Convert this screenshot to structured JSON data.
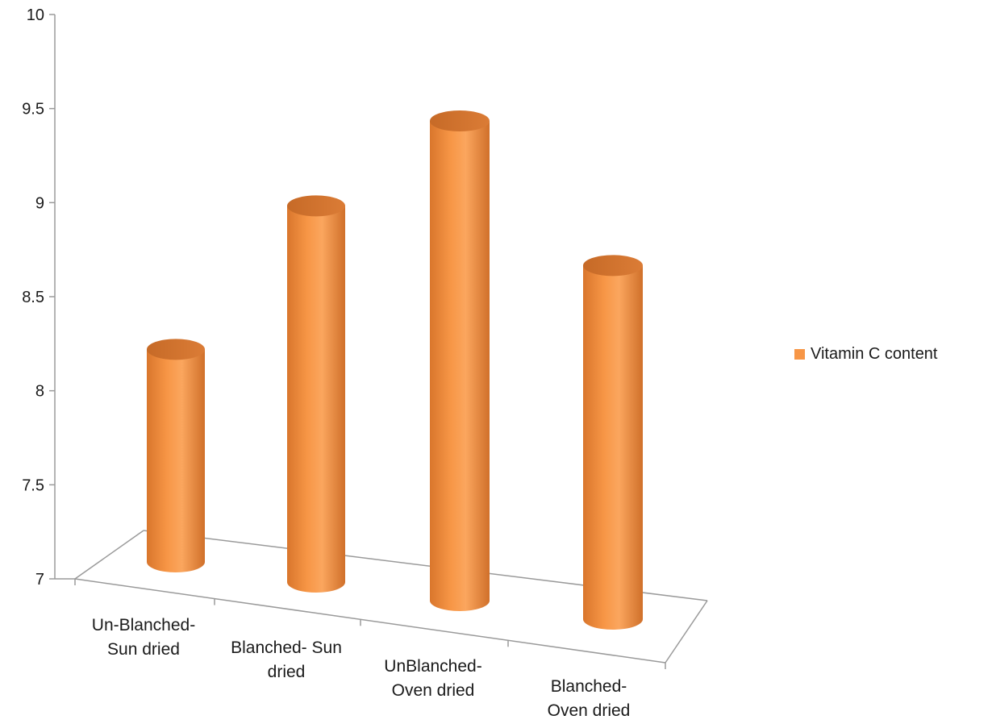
{
  "chart_data": {
    "type": "bar",
    "style": "3d-cylinder",
    "categories": [
      [
        "Un-Blanched-",
        "Sun dried"
      ],
      [
        "Blanched- Sun",
        "dried"
      ],
      [
        "UnBlanched-",
        "Oven dried"
      ],
      [
        "Blanched-",
        "Oven dried"
      ]
    ],
    "series": [
      {
        "name": "Vitamin C content",
        "values": [
          8.13,
          9.0,
          9.55,
          8.88
        ],
        "color": "#F79646"
      }
    ],
    "ylim": [
      7,
      10
    ],
    "yticks": [
      "7",
      "7.5",
      "8",
      "8.5",
      "9",
      "9.5",
      "10"
    ],
    "title": "",
    "xlabel": "",
    "ylabel": "",
    "grid": false,
    "legend_position": "right"
  },
  "legend": {
    "label": "Vitamin C content",
    "color": "#F79646"
  }
}
